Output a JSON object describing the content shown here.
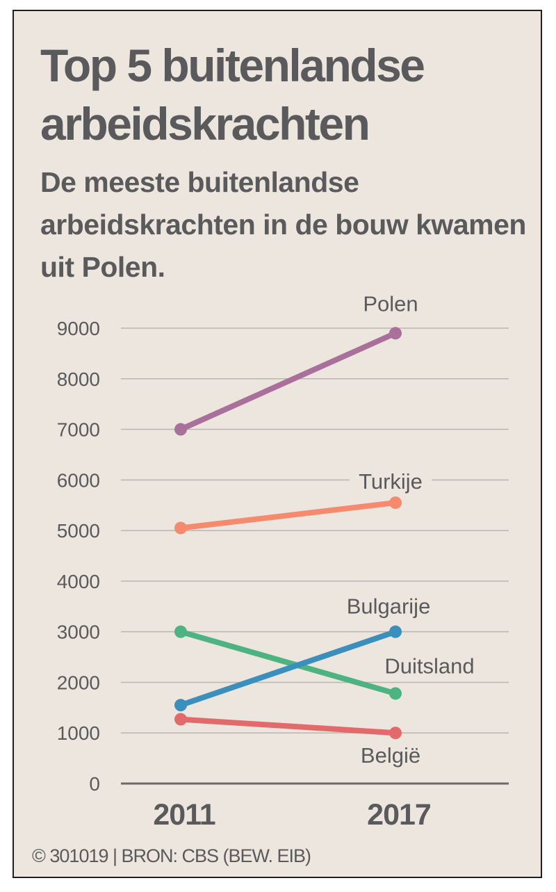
{
  "title": "Top 5 buitenlandse arbeidskrachten",
  "subtitle": "De meeste buitenlandse arbeidskrachten in de bouw kwamen uit Polen.",
  "credit": "© 301019 | BRON: CBS (BEW. EIB)",
  "colors": {
    "background": "#ece6de",
    "text": "#5a5a5c",
    "grid": "#b9b5b0",
    "Polen": "#a8709a",
    "Turkije": "#f58a6e",
    "Duitsland": "#4db381",
    "Bulgarije": "#3a8fbd",
    "België": "#e26a6a"
  },
  "chart_data": {
    "type": "line",
    "title": "Top 5 buitenlandse arbeidskrachten",
    "categories": [
      "2011",
      "2017"
    ],
    "ylim": [
      0,
      9000
    ],
    "yticks": [
      0,
      1000,
      2000,
      3000,
      4000,
      5000,
      6000,
      7000,
      8000,
      9000
    ],
    "grid": true,
    "series": [
      {
        "name": "Polen",
        "values": [
          7000,
          8900
        ]
      },
      {
        "name": "Turkije",
        "values": [
          5050,
          5550
        ]
      },
      {
        "name": "Duitsland",
        "values": [
          3000,
          1780
        ]
      },
      {
        "name": "Bulgarije",
        "values": [
          1550,
          3000
        ]
      },
      {
        "name": "België",
        "values": [
          1270,
          1000
        ]
      }
    ]
  }
}
